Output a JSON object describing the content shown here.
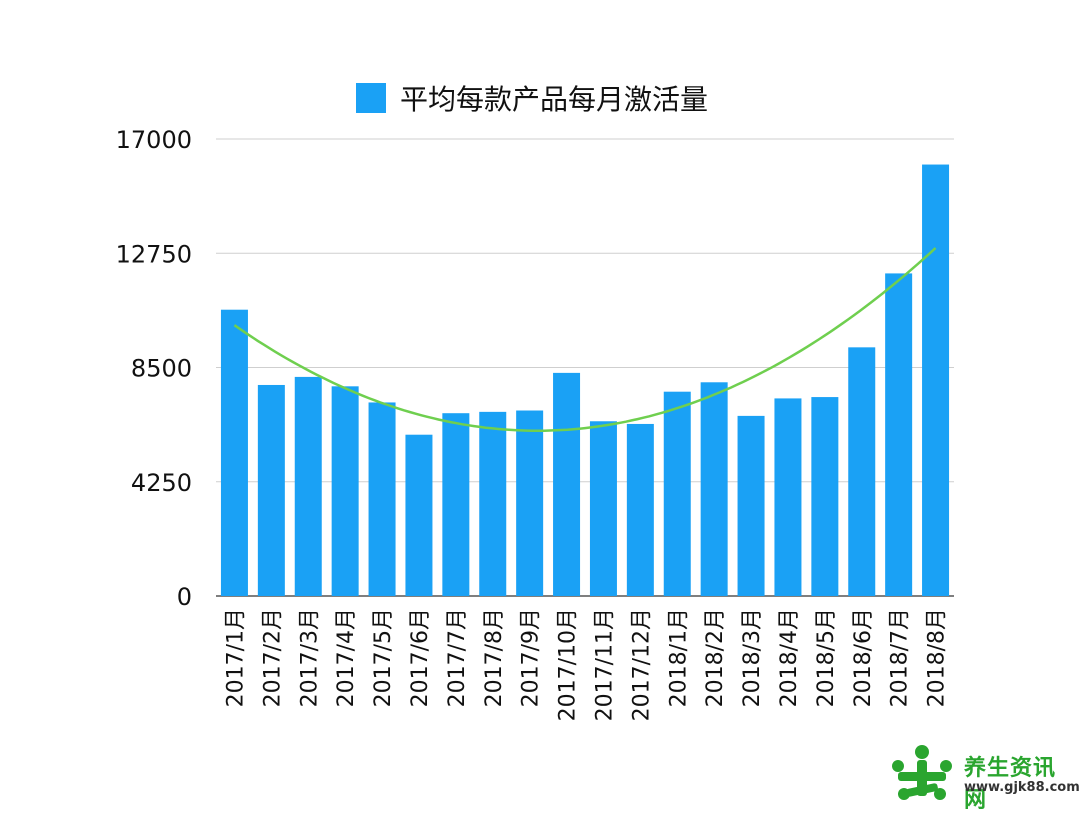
{
  "chart_data": {
    "type": "bar",
    "title": "",
    "xlabel": "",
    "ylabel": "",
    "legend": {
      "label": "平均每款产品每月激活量",
      "placement": "top"
    },
    "categories": [
      "2017/1月",
      "2017/2月",
      "2017/3月",
      "2017/4月",
      "2017/5月",
      "2017/6月",
      "2017/7月",
      "2017/8月",
      "2017/9月",
      "2017/10月",
      "2017/11月",
      "2017/12月",
      "2018/1月",
      "2018/2月",
      "2018/3月",
      "2018/4月",
      "2018/5月",
      "2018/6月",
      "2018/7月",
      "2018/8月"
    ],
    "series": [
      {
        "name": "平均每款产品每月激活量",
        "color": "#1aa1f5",
        "values": [
          10650,
          7850,
          8150,
          7800,
          7200,
          6000,
          6800,
          6850,
          6900,
          8300,
          6500,
          6400,
          7600,
          7950,
          6700,
          7350,
          7400,
          9250,
          12000,
          16050
        ]
      }
    ],
    "trendline": {
      "type": "polynomial",
      "color": "#6fcf4f"
    },
    "yticks": [
      "0",
      "4250",
      "8500",
      "12750",
      "17000"
    ],
    "ylim": [
      0,
      17000
    ],
    "grid": true
  },
  "watermark": {
    "text": "养生资讯网",
    "url": "www.gjk88.com"
  }
}
